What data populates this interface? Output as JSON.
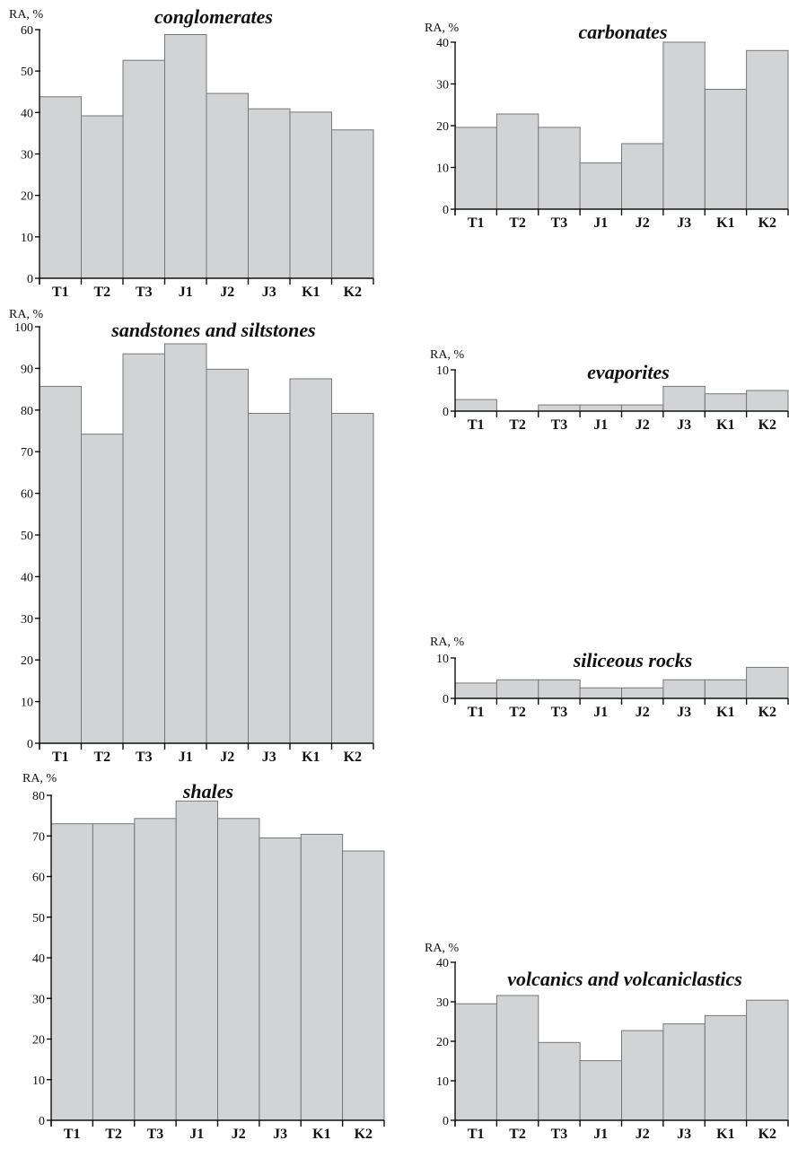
{
  "chart_data": [
    {
      "type": "bar",
      "title": "conglomerates",
      "ylabel": "RA, %",
      "categories": [
        "T1",
        "T2",
        "T3",
        "J1",
        "J2",
        "J3",
        "K1",
        "K2"
      ],
      "values": [
        43.8,
        39.2,
        52.6,
        58.8,
        44.6,
        40.9,
        40.1,
        35.8
      ],
      "ylim": [
        0,
        60
      ],
      "yticks": [
        0,
        10,
        20,
        30,
        40,
        50,
        60
      ]
    },
    {
      "type": "bar",
      "title": "carbonates",
      "ylabel": "RA, %",
      "categories": [
        "T1",
        "T2",
        "T3",
        "J1",
        "J2",
        "J3",
        "K1",
        "K2"
      ],
      "values": [
        19.6,
        22.8,
        19.6,
        11.1,
        15.7,
        40.0,
        28.7,
        38.0
      ],
      "ylim": [
        0,
        40
      ],
      "yticks": [
        0,
        10,
        20,
        30,
        40
      ]
    },
    {
      "type": "bar",
      "title": "sandstones and siltstones",
      "ylabel": "RA, %",
      "categories": [
        "T1",
        "T2",
        "T3",
        "J1",
        "J2",
        "J3",
        "K1",
        "K2"
      ],
      "values": [
        85.7,
        74.2,
        93.5,
        95.9,
        89.8,
        79.2,
        87.5,
        79.2
      ],
      "ylim": [
        0,
        100
      ],
      "yticks": [
        0,
        10,
        20,
        30,
        40,
        50,
        60,
        70,
        80,
        90,
        100
      ]
    },
    {
      "type": "bar",
      "title": "evaporites",
      "ylabel": "RA, %",
      "categories": [
        "T1",
        "T2",
        "T3",
        "J1",
        "J2",
        "J3",
        "K1",
        "K2"
      ],
      "values": [
        2.8,
        0,
        1.5,
        1.5,
        1.5,
        6.0,
        4.2,
        5.0
      ],
      "ylim": [
        0,
        10
      ],
      "yticks": [
        0,
        10
      ]
    },
    {
      "type": "bar",
      "title": "siliceous rocks",
      "ylabel": "RA, %",
      "categories": [
        "T1",
        "T2",
        "T3",
        "J1",
        "J2",
        "J3",
        "K1",
        "K2"
      ],
      "values": [
        3.8,
        4.6,
        4.6,
        2.6,
        2.6,
        4.6,
        4.6,
        7.7
      ],
      "ylim": [
        0,
        10
      ],
      "yticks": [
        0,
        10
      ]
    },
    {
      "type": "bar",
      "title": "shales",
      "ylabel": "RA, %",
      "categories": [
        "T1",
        "T2",
        "T3",
        "J1",
        "J2",
        "J3",
        "K1",
        "K2"
      ],
      "values": [
        73.0,
        73.0,
        74.3,
        78.6,
        74.3,
        69.5,
        70.4,
        66.3
      ],
      "ylim": [
        0,
        80
      ],
      "yticks": [
        0,
        10,
        20,
        30,
        40,
        50,
        60,
        70,
        80
      ]
    },
    {
      "type": "bar",
      "title": "volcanics and volcaniclastics",
      "ylabel": "RA, %",
      "categories": [
        "T1",
        "T2",
        "T3",
        "J1",
        "J2",
        "J3",
        "K1",
        "K2"
      ],
      "values": [
        29.5,
        31.6,
        19.7,
        15.1,
        22.7,
        24.4,
        26.5,
        30.4
      ],
      "ylim": [
        0,
        40
      ],
      "yticks": [
        0,
        10,
        20,
        30,
        40
      ]
    }
  ]
}
